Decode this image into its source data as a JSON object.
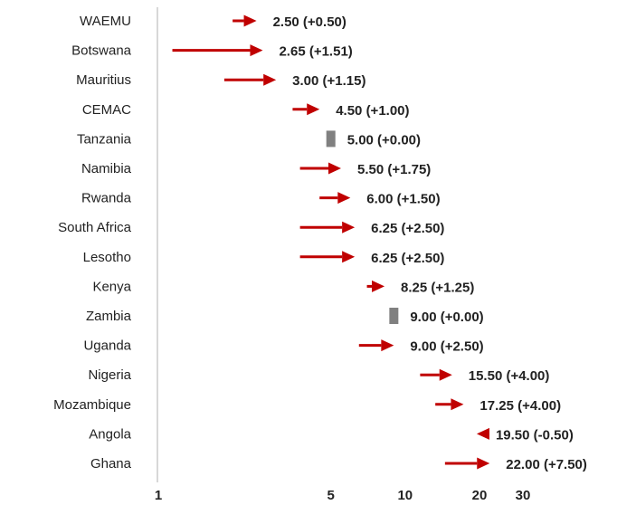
{
  "chart_data": {
    "type": "arrow-range",
    "title": "",
    "xlabel": "",
    "ylabel": "",
    "x_scale": "log",
    "x_ticks": [
      1,
      5,
      10,
      20,
      30
    ],
    "xlim": [
      1,
      30
    ],
    "grid": false,
    "legend": "none",
    "colors": {
      "increase": "#c00000",
      "unchanged": "#808080",
      "axis": "#cccccc",
      "text": "#222222"
    },
    "categories": [
      "WAEMU",
      "Botswana",
      "Mauritius",
      "CEMAC",
      "Tanzania",
      "Namibia",
      "Rwanda",
      "South Africa",
      "Lesotho",
      "Kenya",
      "Zambia",
      "Uganda",
      "Nigeria",
      "Mozambique",
      "Angola",
      "Ghana"
    ],
    "series": [
      {
        "values": [
          2.5,
          2.65,
          3.0,
          4.5,
          5.0,
          5.5,
          6.0,
          6.25,
          6.25,
          8.25,
          9.0,
          9.0,
          15.5,
          17.25,
          19.5,
          22.0
        ]
      },
      {
        "values": [
          0.5,
          1.51,
          1.15,
          1.0,
          0.0,
          1.75,
          1.5,
          2.5,
          2.5,
          1.25,
          0.0,
          2.5,
          4.0,
          4.0,
          -0.5,
          7.5
        ]
      }
    ],
    "labels": [
      "2.50 (+0.50)",
      "2.65 (+1.51)",
      "3.00 (+1.15)",
      "4.50 (+1.00)",
      "5.00 (+0.00)",
      "5.50 (+1.75)",
      "6.00 (+1.50)",
      "6.25 (+2.50)",
      "6.25 (+2.50)",
      "8.25 (+1.25)",
      "9.00 (+0.00)",
      "9.00 (+2.50)",
      "15.50 (+4.00)",
      "17.25 (+4.00)",
      "19.50 (-0.50)",
      "22.00 (+7.50)"
    ]
  }
}
